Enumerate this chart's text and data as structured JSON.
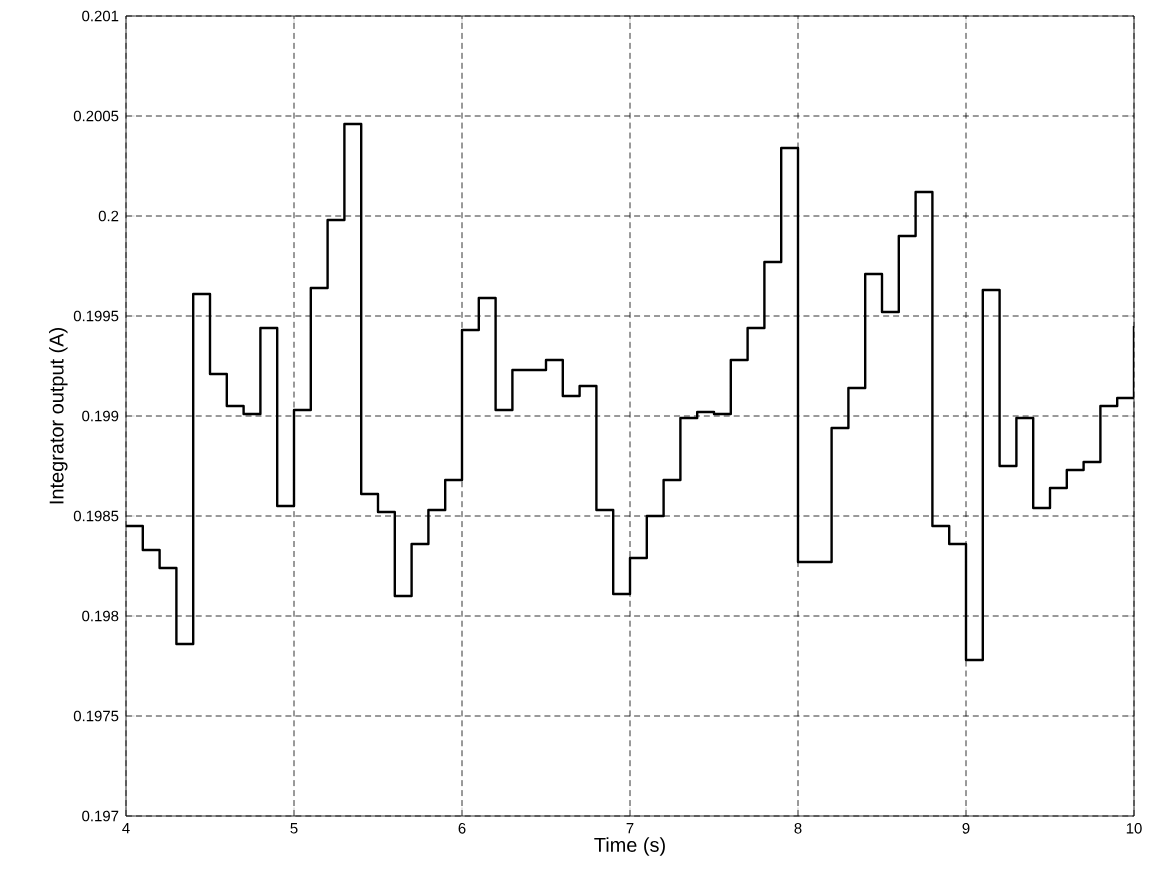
{
  "chart_data": {
    "type": "step",
    "xlabel": "Time (s)",
    "ylabel": "Integrator output (A)",
    "x": [
      4.0,
      4.1,
      4.2,
      4.3,
      4.4,
      4.5,
      4.6,
      4.7,
      4.8,
      4.9,
      5.0,
      5.1,
      5.2,
      5.3,
      5.4,
      5.5,
      5.6,
      5.7,
      5.8,
      5.9,
      6.0,
      6.1,
      6.2,
      6.3,
      6.4,
      6.5,
      6.6,
      6.7,
      6.8,
      6.9,
      7.0,
      7.1,
      7.2,
      7.3,
      7.4,
      7.5,
      7.6,
      7.7,
      7.8,
      7.9,
      8.0,
      8.1,
      8.2,
      8.3,
      8.4,
      8.5,
      8.6,
      8.7,
      8.8,
      8.9,
      9.0,
      9.1,
      9.2,
      9.3,
      9.4,
      9.5,
      9.6,
      9.7,
      9.8,
      9.9,
      10.0
    ],
    "series": [
      {
        "color": "#000000",
        "values": [
          0.19845,
          0.19833,
          0.19824,
          0.19786,
          0.19961,
          0.19921,
          0.19905,
          0.19901,
          0.19944,
          0.19855,
          0.19903,
          0.19964,
          0.19998,
          0.20046,
          0.19861,
          0.19852,
          0.1981,
          0.19836,
          0.19853,
          0.19868,
          0.19943,
          0.19959,
          0.19903,
          0.19923,
          0.19923,
          0.19928,
          0.1991,
          0.19915,
          0.19853,
          0.19811,
          0.19829,
          0.1985,
          0.19868,
          0.19899,
          0.19902,
          0.19901,
          0.19928,
          0.19944,
          0.19977,
          0.20034,
          0.19827,
          0.19827,
          0.19894,
          0.19914,
          0.19971,
          0.19952,
          0.1999,
          0.20012,
          0.19845,
          0.19836,
          0.19778,
          0.19963,
          0.19875,
          0.19899,
          0.19854,
          0.19864,
          0.19873,
          0.19877,
          0.19905,
          0.19909,
          0.19945
        ]
      }
    ],
    "xlim": [
      4,
      10
    ],
    "ylim": [
      0.197,
      0.201
    ],
    "xticks": [
      4,
      5,
      6,
      7,
      8,
      9,
      10
    ],
    "yticks": [
      0.197,
      0.1975,
      0.198,
      0.1985,
      0.199,
      0.1995,
      0.2,
      0.2005,
      0.201
    ],
    "grid": true,
    "marker": "none",
    "line_style": "solid"
  }
}
